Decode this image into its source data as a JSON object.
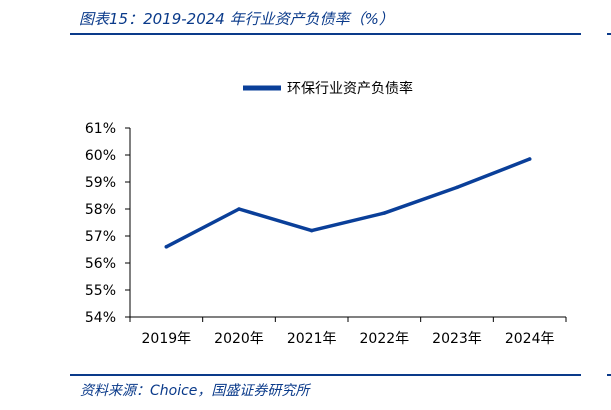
{
  "figure": {
    "caption": "图表15：2019-2024 年行业资产负债率（%）",
    "source": "资料来源：Choice，国盛证券研究所"
  },
  "colors": {
    "accent": "#0a3a8a",
    "series": "#0a3f99",
    "axis": "#000000"
  },
  "chart_data": {
    "type": "line",
    "title": "",
    "xlabel": "",
    "ylabel": "",
    "categories": [
      "2019年",
      "2020年",
      "2021年",
      "2022年",
      "2023年",
      "2024年"
    ],
    "series": [
      {
        "name": "环保行业资产负债率",
        "values": [
          56.6,
          58.0,
          57.2,
          57.85,
          58.8,
          59.85
        ]
      }
    ],
    "ylim": [
      54,
      61
    ],
    "yticks": [
      "54%",
      "55%",
      "56%",
      "57%",
      "58%",
      "59%",
      "60%",
      "61%"
    ],
    "grid": false,
    "legend": "top-center"
  }
}
